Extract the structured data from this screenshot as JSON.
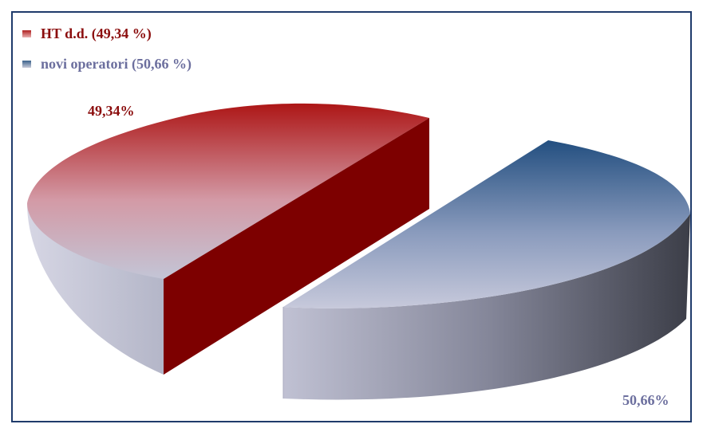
{
  "chart_data": {
    "type": "pie",
    "style": "3d-exploded",
    "legend_position": "top-left",
    "slices": [
      {
        "label": "HT d.d. (49,34 %)",
        "value": 49.34,
        "data_label": "49,34%",
        "color": "#9b1b1b",
        "label_color": "#8b0d0d"
      },
      {
        "label": "novi operatori (50,66 %)",
        "value": 50.66,
        "data_label": "50,66%",
        "color": "#2f5c8a",
        "label_color": "#6c6f9e"
      }
    ]
  }
}
